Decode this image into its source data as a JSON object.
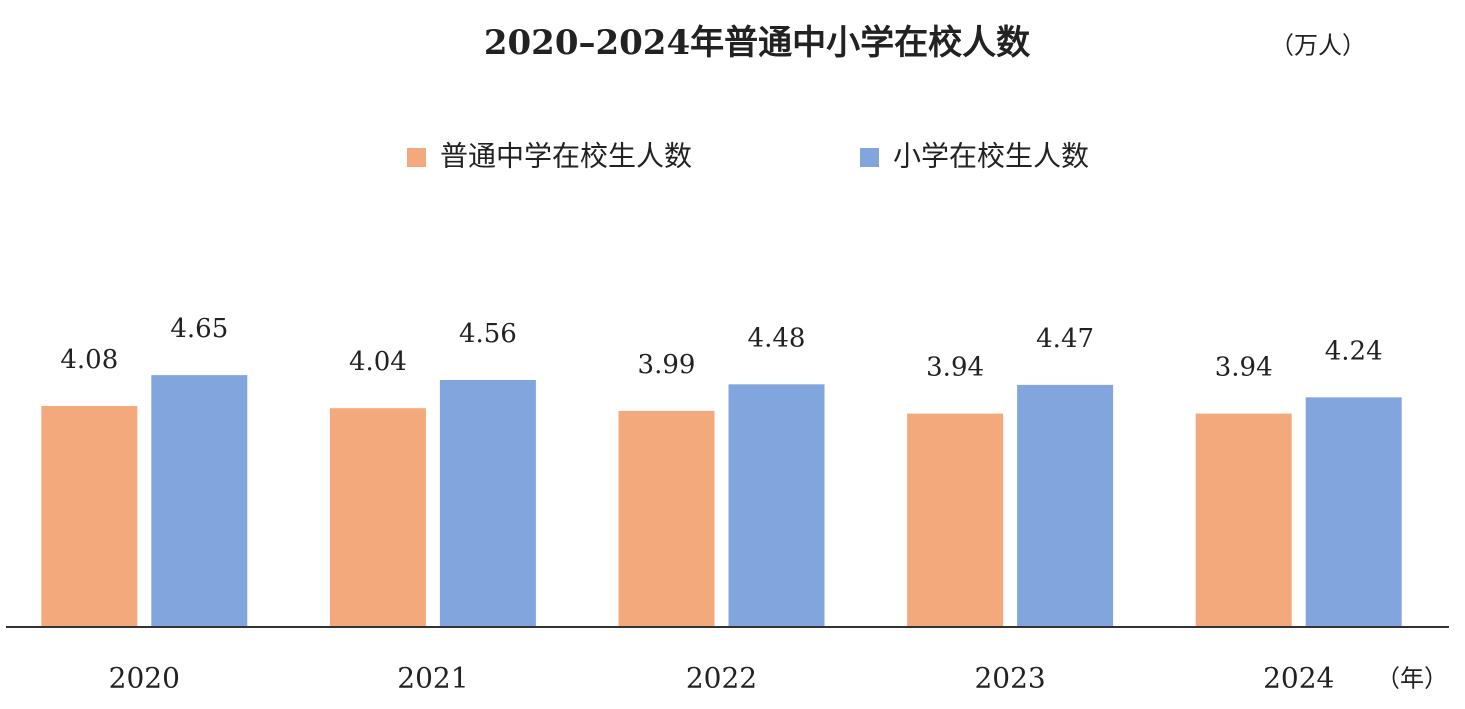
{
  "chart_data": {
    "type": "bar",
    "title": "2020–2024年普通中小学在校人数",
    "unit_label": "（万人）",
    "x_unit_label": "（年）",
    "categories": [
      "2020",
      "2021",
      "2022",
      "2023",
      "2024"
    ],
    "series": [
      {
        "name": "普通中学在校生人数",
        "color": "#f4a97c",
        "values": [
          4.08,
          4.04,
          3.99,
          3.94,
          3.94
        ]
      },
      {
        "name": "小学在校生人数",
        "color": "#83a5de",
        "values": [
          4.65,
          4.56,
          4.48,
          4.47,
          4.24
        ]
      }
    ],
    "ylim": [
      0,
      6
    ]
  }
}
